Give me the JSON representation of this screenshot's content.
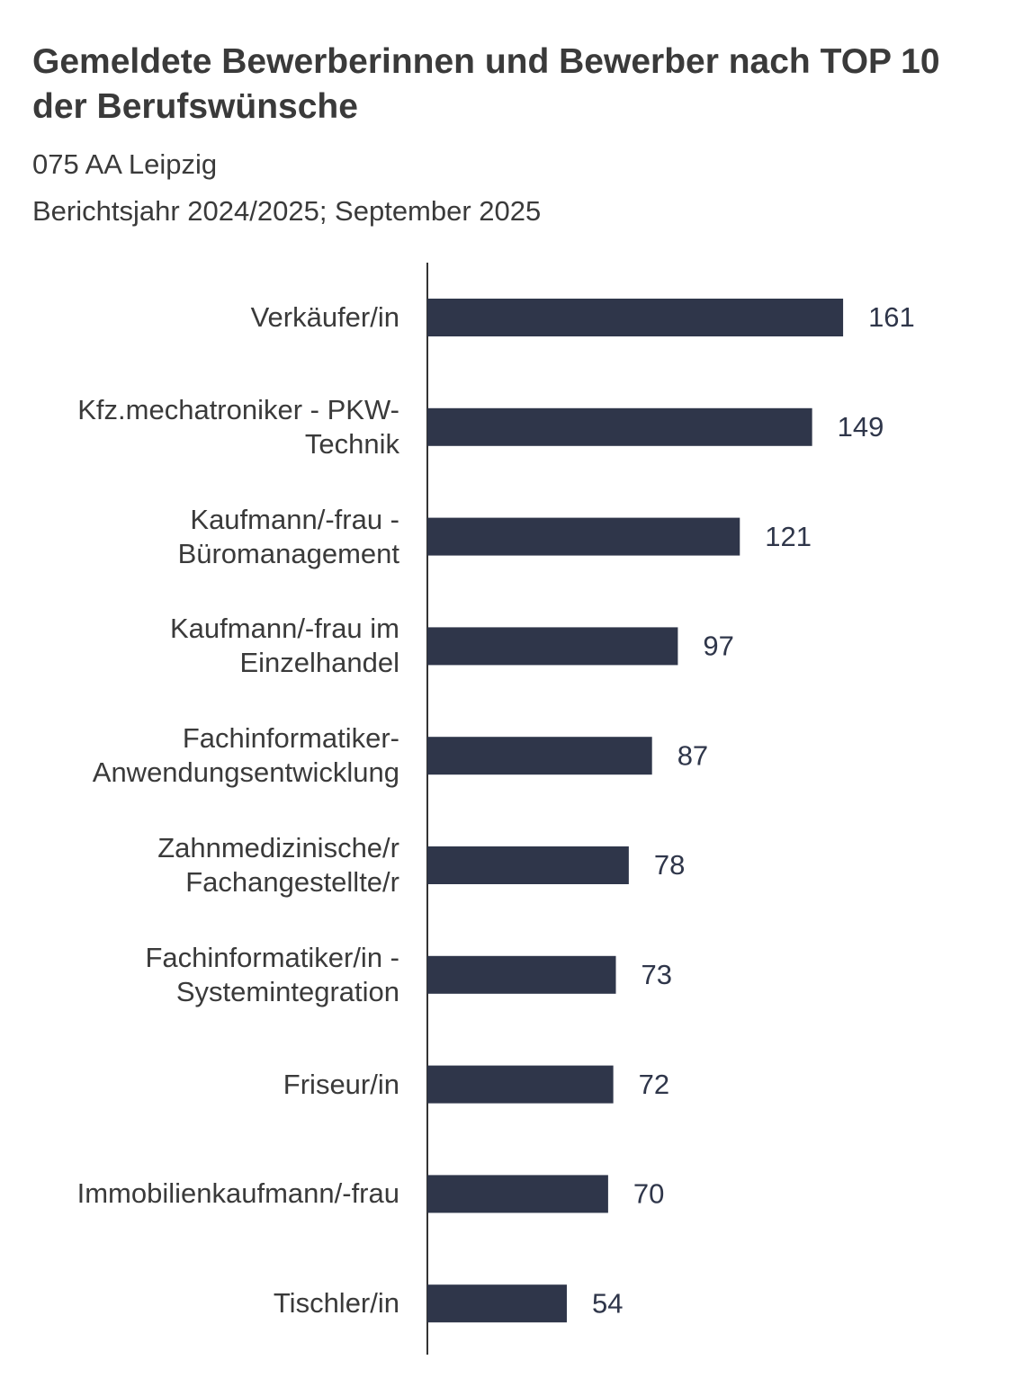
{
  "chart_data": {
    "type": "bar",
    "orientation": "horizontal",
    "title": "Gemeldete Bewerberinnen und Bewerber nach TOP 10 der Berufswünsche",
    "subtitle": "075 AA Leipzig",
    "subtitle2": "Berichtsjahr 2024/2025; September 2025",
    "categories": [
      "Verkäufer/in",
      "Kfz.mechatroniker - PKW-Technik",
      "Kaufmann/-frau - Büromanagement",
      "Kaufmann/-frau im Einzelhandel",
      "Fachinformatiker-Anwendungsentwicklung",
      "Zahnmedizinische/r Fachangestellte/r",
      "Fachinformatiker/in - Systemintegration",
      "Friseur/in",
      "Immobilienkaufmann/-frau",
      "Tischler/in"
    ],
    "values": [
      161,
      149,
      121,
      97,
      87,
      78,
      73,
      72,
      70,
      54
    ],
    "color": "#2f364a",
    "xlim": [
      0,
      180
    ]
  }
}
